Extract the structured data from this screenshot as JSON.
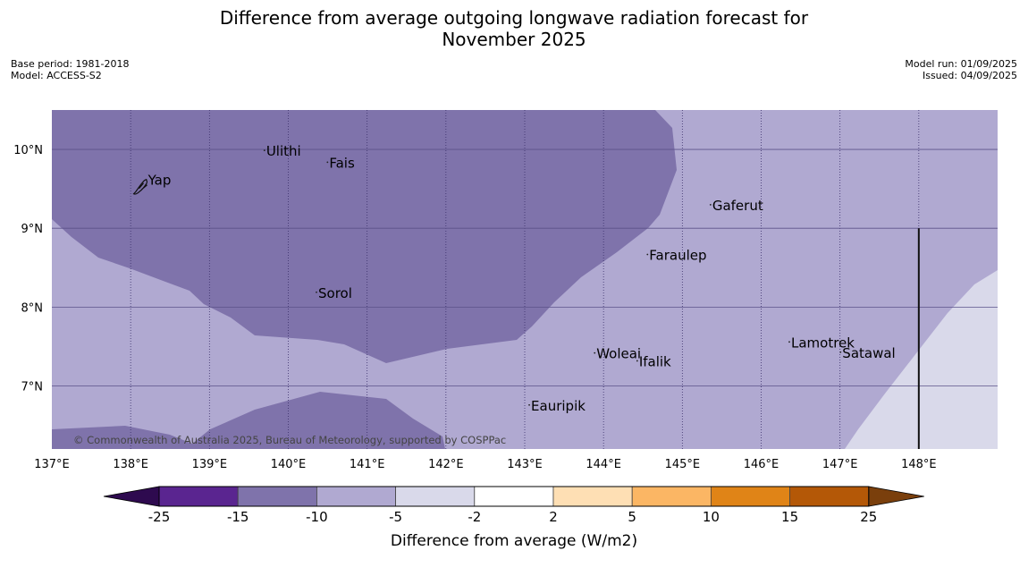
{
  "title": {
    "line1": "Difference from average outgoing longwave radiation forecast for",
    "line2": "November 2025"
  },
  "meta_left": {
    "base_period": "Base period: 1981-2018",
    "model": "Model: ACCESS-S2"
  },
  "meta_right": {
    "model_run": "Model run: 01/09/2025",
    "issued": "Issued: 04/09/2025"
  },
  "map": {
    "lon_range": [
      137.0,
      149.0
    ],
    "lat_range": [
      6.2,
      10.5
    ],
    "lon_ticks": [
      {
        "value": 137,
        "label": "137°E"
      },
      {
        "value": 138,
        "label": "138°E"
      },
      {
        "value": 139,
        "label": "139°E"
      },
      {
        "value": 140,
        "label": "140°E"
      },
      {
        "value": 141,
        "label": "141°E"
      },
      {
        "value": 142,
        "label": "142°E"
      },
      {
        "value": 143,
        "label": "143°E"
      },
      {
        "value": 144,
        "label": "144°E"
      },
      {
        "value": 145,
        "label": "145°E"
      },
      {
        "value": 146,
        "label": "146°E"
      },
      {
        "value": 147,
        "label": "147°E"
      },
      {
        "value": 148,
        "label": "148°E"
      }
    ],
    "lat_ticks": [
      {
        "value": 10,
        "label": "10°N"
      },
      {
        "value": 9,
        "label": "9°N"
      },
      {
        "value": 8,
        "label": "8°N"
      },
      {
        "value": 7,
        "label": "7°N"
      }
    ],
    "places": [
      {
        "name": "Yap",
        "lon": 138.22,
        "lat": 9.55
      },
      {
        "name": "Ulithi",
        "lon": 139.72,
        "lat": 9.92
      },
      {
        "name": "Fais",
        "lon": 140.52,
        "lat": 9.77
      },
      {
        "name": "Gaferut",
        "lon": 145.38,
        "lat": 9.23
      },
      {
        "name": "Faraulep",
        "lon": 144.58,
        "lat": 8.6
      },
      {
        "name": "Sorol",
        "lon": 140.38,
        "lat": 8.12
      },
      {
        "name": "Woleai",
        "lon": 143.91,
        "lat": 7.35
      },
      {
        "name": "Ifalik",
        "lon": 144.45,
        "lat": 7.25
      },
      {
        "name": "Lamotrek",
        "lon": 146.38,
        "lat": 7.49
      },
      {
        "name": "Satawal",
        "lon": 147.03,
        "lat": 7.36
      },
      {
        "name": "Eauripik",
        "lon": 143.08,
        "lat": 6.69
      }
    ],
    "boundary_line": {
      "lon": 148.0,
      "lat_from": 6.2,
      "lat_to": 9.0
    },
    "credit": "© Commonwealth of Australia 2025, Bureau of Meteorology, supported by COSPPac",
    "category_colors": {
      "-15 to -10": "#7f73ab",
      "-10 to -5": "#b0a9d1",
      "-5 to -2": "#d9d9ea"
    }
  },
  "legend": {
    "title": "Difference from average (W/m2)",
    "boundaries": [
      "-25",
      "-15",
      "-10",
      "-5",
      "-2",
      "2",
      "5",
      "10",
      "15",
      "25"
    ],
    "colors": [
      "#5a2590",
      "#7f73ab",
      "#b0a9d1",
      "#d9d9ea",
      "#ffffff",
      "#fedfb4",
      "#fbb664",
      "#e08417",
      "#b45807"
    ],
    "under_color": "#2e0a4f",
    "over_color": "#7a3f0c"
  }
}
